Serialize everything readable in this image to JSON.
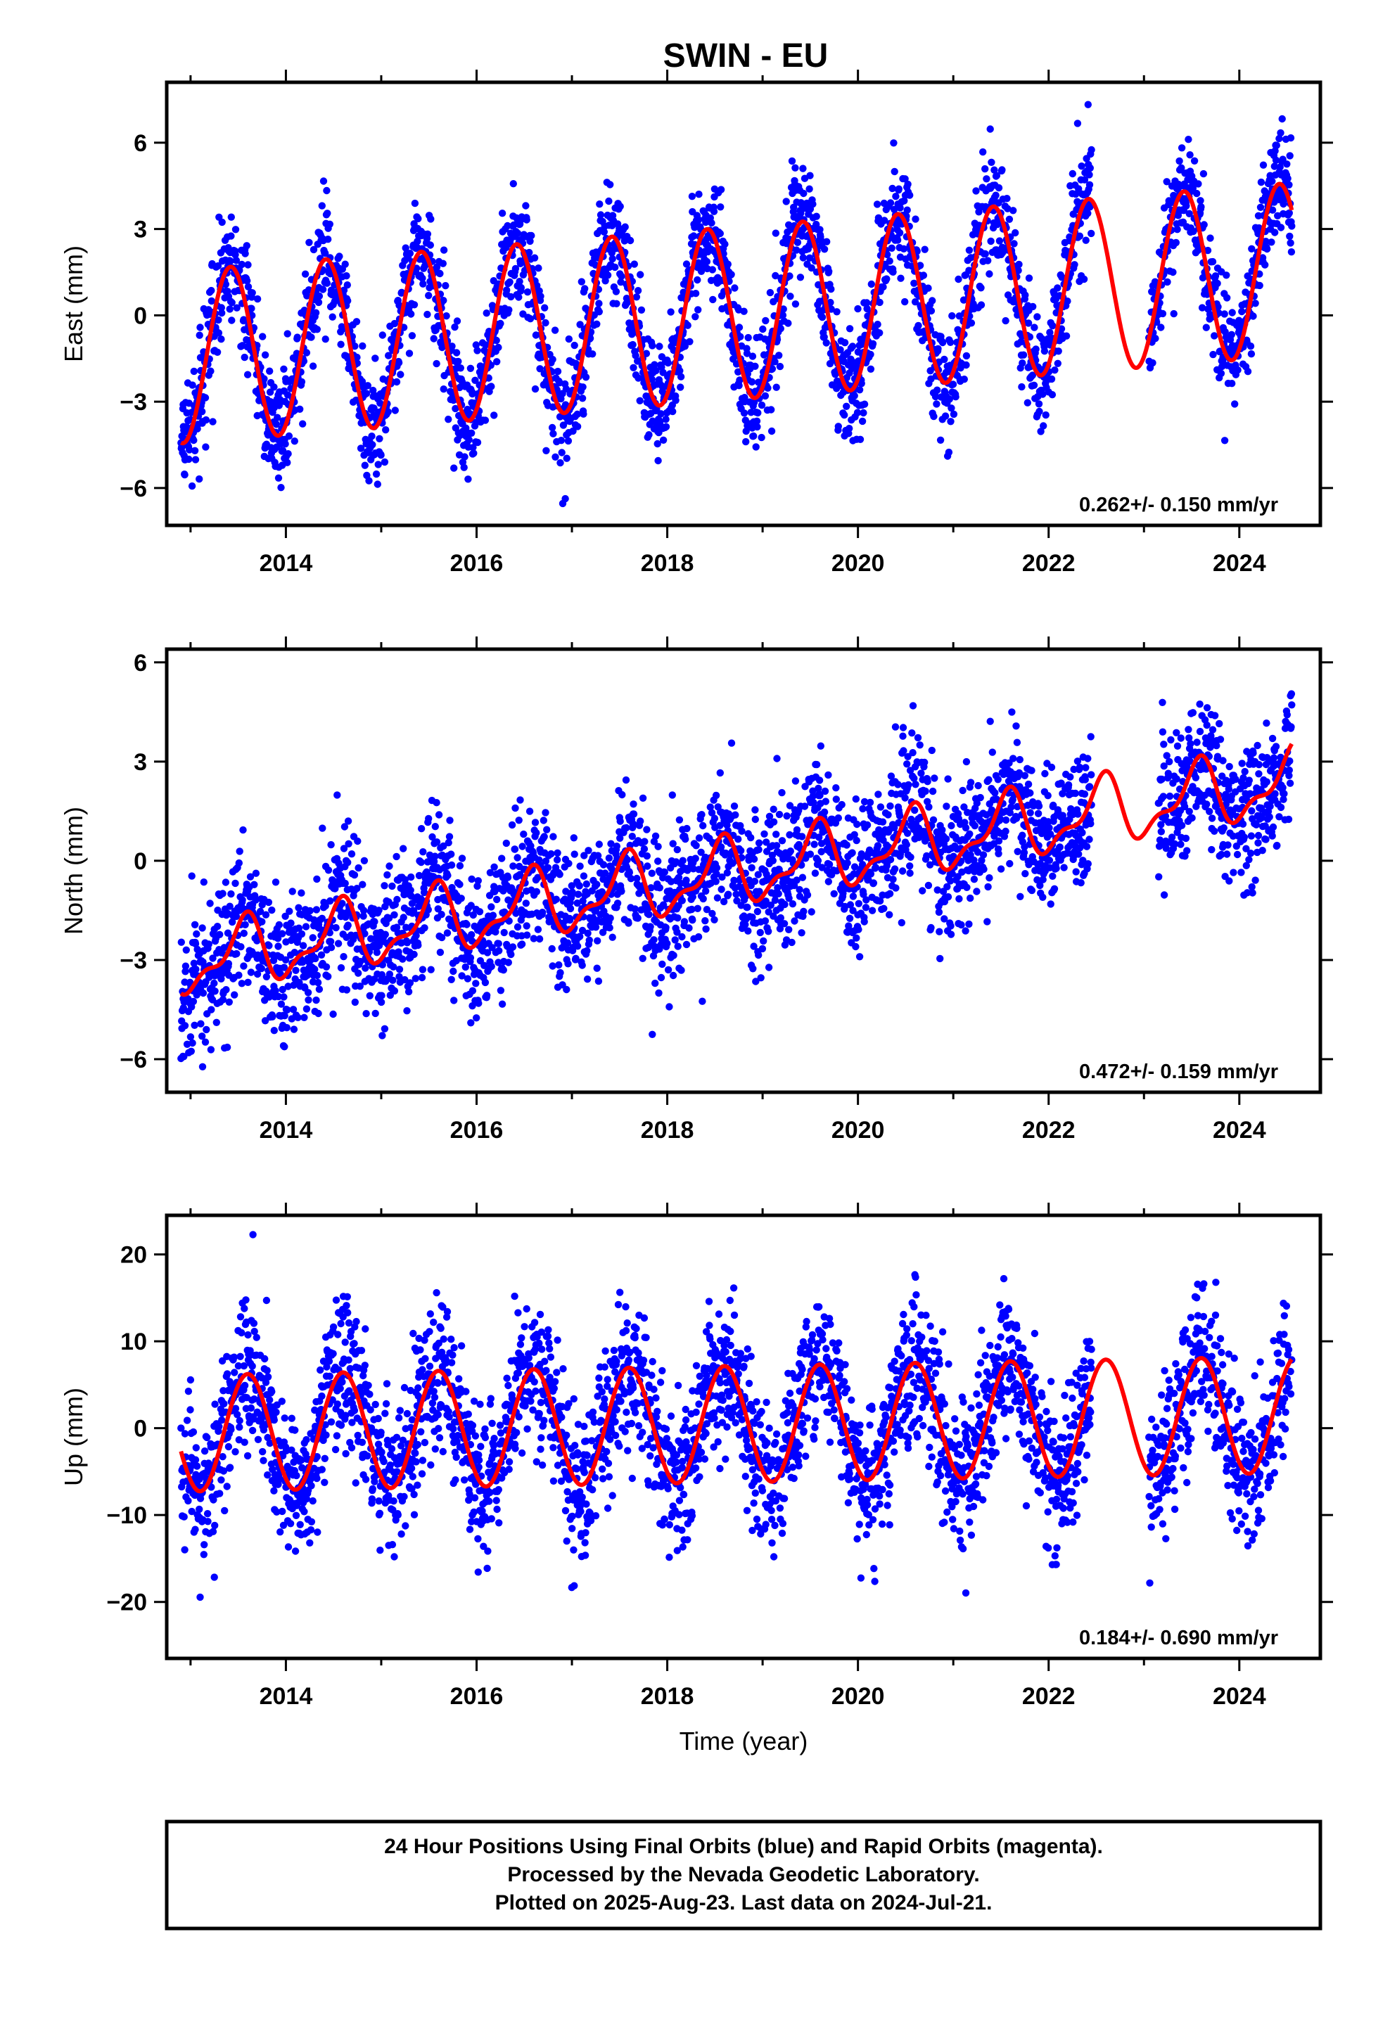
{
  "title": "SWIN - EU",
  "footer": {
    "lines": [
      "24 Hour Positions Using Final Orbits (blue) and Rapid Orbits (magenta).",
      "Processed by the Nevada Geodetic Laboratory.",
      "Plotted on 2025-Aug-23. Last data on 2024-Jul-21."
    ]
  },
  "colors": {
    "points": "#0000ff",
    "fit": "#ff0000",
    "frame": "#000000"
  },
  "chart_data": [
    {
      "type": "scatter",
      "ylabel": "East (mm)",
      "xlabel": "",
      "xlim": [
        2012.75,
        2024.85
      ],
      "ylim": [
        -7.3,
        8.1
      ],
      "xticks": [
        2014,
        2016,
        2018,
        2020,
        2022,
        2024
      ],
      "yticks": [
        -6,
        -3,
        0,
        3,
        6
      ],
      "ytick_labels": [
        "−6",
        "−3",
        "0",
        "3",
        "6"
      ],
      "rate_label": "0.262+/- 0.150 mm/yr",
      "data_gap": [
        2022.45,
        2023.05
      ],
      "series": [
        {
          "role": "observations",
          "x_start": 2012.9,
          "x_end": 2024.55,
          "n_points": 3600,
          "trend": {
            "intercept": -1.45,
            "slope": 0.262,
            "t0": 2012.9
          },
          "annual": {
            "amplitude": 3.0,
            "peak_year_fraction": 0.42
          },
          "noise_sd": 1.0
        },
        {
          "role": "model_fit",
          "x_start": 2012.9,
          "x_end": 2024.55
        }
      ]
    },
    {
      "type": "scatter",
      "ylabel": "North (mm)",
      "xlabel": "",
      "xlim": [
        2012.75,
        2024.85
      ],
      "ylim": [
        -7.0,
        6.4
      ],
      "xticks": [
        2014,
        2016,
        2018,
        2020,
        2022,
        2024
      ],
      "yticks": [
        -6,
        -3,
        0,
        3,
        6
      ],
      "ytick_labels": [
        "−6",
        "−3",
        "0",
        "3",
        "6"
      ],
      "rate_label": "0.472+/- 0.159 mm/yr",
      "data_gap": [
        2022.45,
        2023.15
      ],
      "series": [
        {
          "role": "observations",
          "x_start": 2012.9,
          "x_end": 2024.55,
          "n_points": 3600,
          "trend": {
            "intercept": -3.1,
            "slope": 0.472,
            "t0": 2012.9
          },
          "annual": {
            "amplitude": 0.9,
            "peak_year_fraction": 0.55
          },
          "noise_sd": 1.1
        },
        {
          "role": "model_fit",
          "x_start": 2012.9,
          "x_end": 2024.55
        }
      ]
    },
    {
      "type": "scatter",
      "ylabel": "Up (mm)",
      "xlabel": "Time (year)",
      "xlim": [
        2012.75,
        2024.85
      ],
      "ylim": [
        -26.5,
        24.5
      ],
      "xticks": [
        2014,
        2016,
        2018,
        2020,
        2022,
        2024
      ],
      "yticks": [
        -20,
        -10,
        0,
        10,
        20
      ],
      "ytick_labels": [
        "−20",
        "−10",
        "0",
        "10",
        "20"
      ],
      "rate_label": "0.184+/- 0.690 mm/yr",
      "data_gap": [
        2022.45,
        2023.05
      ],
      "series": [
        {
          "role": "observations",
          "x_start": 2012.9,
          "x_end": 2024.55,
          "n_points": 3600,
          "trend": {
            "intercept": -0.6,
            "slope": 0.184,
            "t0": 2012.9
          },
          "annual": {
            "amplitude": 6.7,
            "peak_year_fraction": 0.6
          },
          "noise_sd": 4.2
        },
        {
          "role": "model_fit",
          "x_start": 2012.9,
          "x_end": 2024.55
        }
      ]
    }
  ]
}
